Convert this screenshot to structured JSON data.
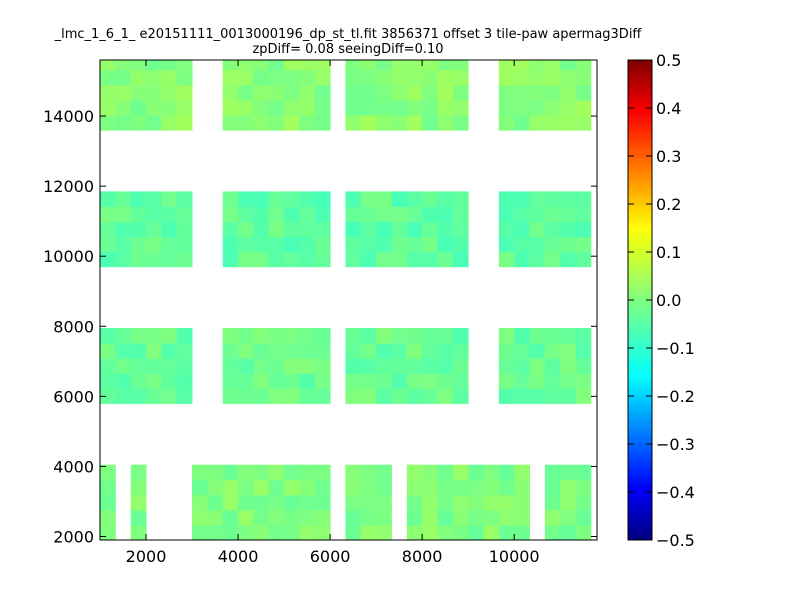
{
  "chart_data": {
    "type": "heatmap",
    "title_line1": "_lmc_1_6_1_ e20151111_0013000196_dp_st_tl.fit 3856371 offset 3 tile-paw apermag3Diff",
    "title_line2": "zpDiff= 0.08 seeingDiff=0.10",
    "xlabel": "",
    "ylabel": "",
    "xlim": [
      1000,
      11800
    ],
    "ylim": [
      1900,
      15600
    ],
    "x_ticks": [
      "2000",
      "4000",
      "6000",
      "8000",
      "10000"
    ],
    "y_ticks": [
      "2000",
      "4000",
      "6000",
      "8000",
      "10000",
      "12000",
      "14000"
    ],
    "colorbar": {
      "colormap": "jet",
      "range": [
        -0.5,
        0.5
      ],
      "ticks": [
        "0.5",
        "0.4",
        "0.3",
        "0.2",
        "0.1",
        "0.0",
        "−0.1",
        "−0.2",
        "−0.3",
        "−0.4",
        "−0.5"
      ]
    },
    "grid": false,
    "cell": {
      "width": 333,
      "height": 430
    },
    "cell_cols_x": [
      1000,
      1333,
      1667,
      2000,
      2333,
      2667,
      3000,
      3333,
      3667,
      4000,
      4333,
      4667,
      5000,
      5333,
      5667,
      6000,
      6333,
      6667,
      7000,
      7333,
      7667,
      8000,
      8333,
      8667,
      9000,
      9333,
      9667,
      10000,
      10333,
      10667,
      11000,
      11333
    ],
    "blocks": [
      {
        "cols": [
          0,
          2,
          6,
          7,
          8,
          9,
          10,
          11,
          12,
          13,
          14,
          16,
          17,
          18,
          20,
          21,
          22,
          23,
          24,
          25,
          26,
          27,
          29,
          30,
          31
        ],
        "rows_y": [
          1900,
          2330,
          2760,
          3190,
          3620
        ],
        "base": 0.0
      },
      {
        "cols": [
          0,
          1,
          2,
          3,
          4,
          5,
          8,
          9,
          10,
          11,
          12,
          13,
          14,
          16,
          17,
          18,
          19,
          20,
          21,
          22,
          23,
          26,
          27,
          28,
          29,
          30,
          31
        ],
        "rows_y": [
          5800,
          6230,
          6660,
          7090,
          7520
        ],
        "base": -0.02
      },
      {
        "cols": [
          0,
          1,
          2,
          3,
          4,
          5,
          8,
          9,
          10,
          11,
          12,
          13,
          14,
          16,
          17,
          18,
          19,
          20,
          21,
          22,
          23,
          26,
          27,
          28,
          29,
          30,
          31
        ],
        "rows_y": [
          9700,
          10130,
          10560,
          10990,
          11420
        ],
        "base": -0.03
      },
      {
        "cols": [
          0,
          1,
          2,
          3,
          4,
          5,
          8,
          9,
          10,
          11,
          12,
          13,
          14,
          16,
          17,
          18,
          19,
          20,
          21,
          22,
          23,
          26,
          27,
          28,
          29,
          30,
          31
        ],
        "rows_y": [
          13600,
          14030,
          14460,
          14890,
          15320
        ],
        "base": 0.01
      }
    ]
  }
}
